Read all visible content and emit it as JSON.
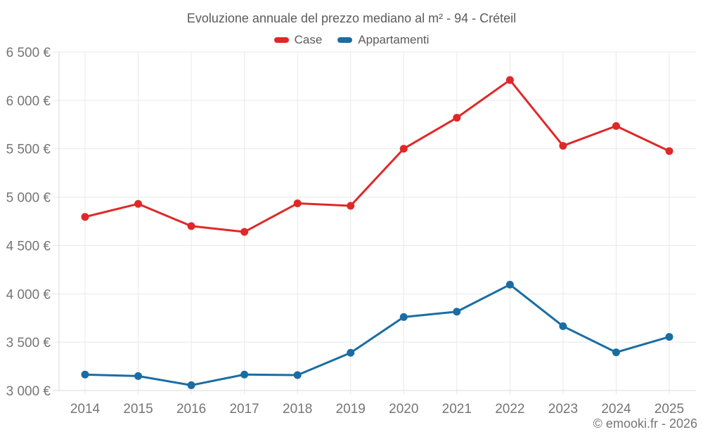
{
  "page": {
    "footer": "© emooki.fr - 2026"
  },
  "chart_data": {
    "type": "line",
    "title": "Evoluzione annuale del prezzo mediano al m² - 94 - Créteil",
    "categories": [
      "2014",
      "2015",
      "2016",
      "2017",
      "2018",
      "2019",
      "2020",
      "2021",
      "2022",
      "2023",
      "2024",
      "2025"
    ],
    "series": [
      {
        "name": "Case",
        "color": "#e02828",
        "values": [
          4795,
          4930,
          4700,
          4640,
          4935,
          4910,
          5500,
          5820,
          6210,
          5530,
          5735,
          5475
        ]
      },
      {
        "name": "Appartamenti",
        "color": "#1a6da3",
        "values": [
          3165,
          3150,
          3055,
          3165,
          3160,
          3390,
          3760,
          3815,
          4095,
          3665,
          3395,
          3555
        ]
      }
    ],
    "xlabel": "",
    "ylabel": "",
    "ylim": [
      3000,
      6500
    ],
    "ytick_step": 500,
    "yunit": "€",
    "grid": true,
    "legend_position": "top",
    "grid_color": "#e8e8e8",
    "axis_color": "#d9d9d9",
    "label_color": "#757575",
    "marker_radius": 5.5
  }
}
